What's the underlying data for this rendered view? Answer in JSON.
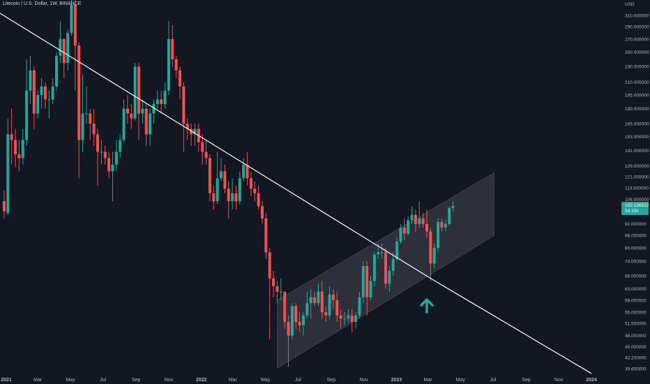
{
  "window": {
    "title": "Litecoin / U.S. Dollar, 1W, BINANCE"
  },
  "axis": {
    "unit": "USD"
  },
  "price_box": {
    "price": "102.136522",
    "countdown": "5d 15h"
  },
  "colors": {
    "background": "#131722",
    "up": "#26a69a",
    "down": "#ef5350",
    "channel_fill": "#434651",
    "trend_line": "#ffffff",
    "arrow": "#26a69a",
    "axis_text": "#b2b5be"
  },
  "icons": [
    "up-arrow-icon"
  ],
  "chart_data": {
    "type": "candlestick",
    "title": "Litecoin / U.S. Dollar, 1W, BINANCE",
    "y_scale": "log",
    "ylabel": "USD",
    "ylim": [
      38.5,
      340
    ],
    "y_ticks": [
      {
        "v": 310,
        "label": "310.000000"
      },
      {
        "v": 290,
        "label": "290.000000"
      },
      {
        "v": 270,
        "label": "270.000000"
      },
      {
        "v": 250,
        "label": "250.000000"
      },
      {
        "v": 230,
        "label": "230.000000"
      },
      {
        "v": 210,
        "label": "210.000000"
      },
      {
        "v": 195,
        "label": "195.000000"
      },
      {
        "v": 180,
        "label": "180.000000"
      },
      {
        "v": 165,
        "label": "165.000000"
      },
      {
        "v": 153,
        "label": "153.000000"
      },
      {
        "v": 141,
        "label": "141.000000"
      },
      {
        "v": 129,
        "label": "129.000000"
      },
      {
        "v": 121,
        "label": "121.000000"
      },
      {
        "v": 113.5,
        "label": "113.500000"
      },
      {
        "v": 106,
        "label": "106.000000"
      },
      {
        "v": 92,
        "label": "92.000000"
      },
      {
        "v": 86,
        "label": "86.000000"
      },
      {
        "v": 80,
        "label": "80.000000"
      },
      {
        "v": 74,
        "label": "74.000000"
      },
      {
        "v": 68,
        "label": "68.000000"
      },
      {
        "v": 63,
        "label": "63.000000"
      },
      {
        "v": 59,
        "label": "59.000000"
      },
      {
        "v": 55,
        "label": "55.000000"
      },
      {
        "v": 51.5,
        "label": "51.500000"
      },
      {
        "v": 48,
        "label": "48.000000"
      },
      {
        "v": 45,
        "label": "45.000000"
      },
      {
        "v": 42.2,
        "label": "42.200000"
      },
      {
        "v": 39.6,
        "label": "39.600000"
      }
    ],
    "x_ticks": [
      {
        "label": "2021",
        "bold": true,
        "date": "2021-01-01"
      },
      {
        "label": "Mar",
        "date": "2021-03-01"
      },
      {
        "label": "May",
        "date": "2021-05-01"
      },
      {
        "label": "Jul",
        "date": "2021-07-01"
      },
      {
        "label": "Sep",
        "date": "2021-09-01"
      },
      {
        "label": "Nov",
        "date": "2021-11-01"
      },
      {
        "label": "2022",
        "bold": true,
        "date": "2022-01-01"
      },
      {
        "label": "Mar",
        "date": "2022-03-01"
      },
      {
        "label": "May",
        "date": "2022-05-01"
      },
      {
        "label": "Jul",
        "date": "2022-07-01"
      },
      {
        "label": "Sep",
        "date": "2022-09-01"
      },
      {
        "label": "Nov",
        "date": "2022-11-01"
      },
      {
        "label": "2023",
        "bold": true,
        "date": "2023-01-01"
      },
      {
        "label": "Mar",
        "date": "2023-03-01"
      },
      {
        "label": "May",
        "date": "2023-05-01"
      },
      {
        "label": "Jul",
        "date": "2023-07-01"
      },
      {
        "label": "Sep",
        "date": "2023-09-01"
      },
      {
        "label": "Nov",
        "date": "2023-11-01"
      },
      {
        "label": "2024",
        "bold": true,
        "date": "2024-01-01"
      }
    ],
    "candles": [
      {
        "date": "2020-12-28",
        "o": 105,
        "h": 112,
        "l": 95,
        "c": 99
      },
      {
        "date": "2021-01-04",
        "o": 98,
        "h": 170,
        "l": 97,
        "c": 155
      },
      {
        "date": "2021-01-11",
        "o": 155,
        "h": 180,
        "l": 130,
        "c": 150
      },
      {
        "date": "2021-01-18",
        "o": 150,
        "h": 160,
        "l": 128,
        "c": 138
      },
      {
        "date": "2021-01-25",
        "o": 138,
        "h": 150,
        "l": 125,
        "c": 135
      },
      {
        "date": "2021-02-01",
        "o": 135,
        "h": 160,
        "l": 130,
        "c": 150
      },
      {
        "date": "2021-02-08",
        "o": 150,
        "h": 240,
        "l": 145,
        "c": 200
      },
      {
        "date": "2021-02-15",
        "o": 200,
        "h": 245,
        "l": 185,
        "c": 225
      },
      {
        "date": "2021-02-22",
        "o": 225,
        "h": 230,
        "l": 160,
        "c": 175
      },
      {
        "date": "2021-03-01",
        "o": 175,
        "h": 200,
        "l": 170,
        "c": 195
      },
      {
        "date": "2021-03-08",
        "o": 195,
        "h": 215,
        "l": 180,
        "c": 205
      },
      {
        "date": "2021-03-15",
        "o": 205,
        "h": 210,
        "l": 180,
        "c": 190
      },
      {
        "date": "2021-03-22",
        "o": 190,
        "h": 200,
        "l": 170,
        "c": 190
      },
      {
        "date": "2021-03-29",
        "o": 190,
        "h": 215,
        "l": 185,
        "c": 205
      },
      {
        "date": "2021-04-05",
        "o": 205,
        "h": 250,
        "l": 200,
        "c": 245
      },
      {
        "date": "2021-04-12",
        "o": 245,
        "h": 300,
        "l": 235,
        "c": 270
      },
      {
        "date": "2021-04-19",
        "o": 270,
        "h": 272,
        "l": 215,
        "c": 235
      },
      {
        "date": "2021-04-26",
        "o": 235,
        "h": 285,
        "l": 225,
        "c": 280
      },
      {
        "date": "2021-05-03",
        "o": 280,
        "h": 412,
        "l": 275,
        "c": 330
      },
      {
        "date": "2021-05-10",
        "o": 330,
        "h": 340,
        "l": 200,
        "c": 260
      },
      {
        "date": "2021-05-17",
        "o": 260,
        "h": 265,
        "l": 120,
        "c": 150
      },
      {
        "date": "2021-05-24",
        "o": 150,
        "h": 220,
        "l": 140,
        "c": 175
      },
      {
        "date": "2021-05-31",
        "o": 175,
        "h": 205,
        "l": 165,
        "c": 175
      },
      {
        "date": "2021-06-07",
        "o": 175,
        "h": 180,
        "l": 150,
        "c": 165
      },
      {
        "date": "2021-06-14",
        "o": 165,
        "h": 180,
        "l": 145,
        "c": 155
      },
      {
        "date": "2021-06-21",
        "o": 155,
        "h": 160,
        "l": 115,
        "c": 140
      },
      {
        "date": "2021-06-28",
        "o": 140,
        "h": 150,
        "l": 130,
        "c": 140
      },
      {
        "date": "2021-07-05",
        "o": 140,
        "h": 145,
        "l": 130,
        "c": 135
      },
      {
        "date": "2021-07-12",
        "o": 135,
        "h": 140,
        "l": 120,
        "c": 125
      },
      {
        "date": "2021-07-19",
        "o": 125,
        "h": 140,
        "l": 105,
        "c": 130
      },
      {
        "date": "2021-07-26",
        "o": 130,
        "h": 150,
        "l": 125,
        "c": 140
      },
      {
        "date": "2021-08-02",
        "o": 140,
        "h": 155,
        "l": 135,
        "c": 150
      },
      {
        "date": "2021-08-09",
        "o": 150,
        "h": 190,
        "l": 148,
        "c": 180
      },
      {
        "date": "2021-08-16",
        "o": 180,
        "h": 195,
        "l": 165,
        "c": 175
      },
      {
        "date": "2021-08-23",
        "o": 175,
        "h": 185,
        "l": 160,
        "c": 170
      },
      {
        "date": "2021-08-30",
        "o": 170,
        "h": 235,
        "l": 168,
        "c": 230
      },
      {
        "date": "2021-09-06",
        "o": 230,
        "h": 235,
        "l": 150,
        "c": 175
      },
      {
        "date": "2021-09-13",
        "o": 175,
        "h": 190,
        "l": 165,
        "c": 180
      },
      {
        "date": "2021-09-20",
        "o": 180,
        "h": 185,
        "l": 145,
        "c": 155
      },
      {
        "date": "2021-09-27",
        "o": 155,
        "h": 180,
        "l": 145,
        "c": 175
      },
      {
        "date": "2021-10-04",
        "o": 175,
        "h": 190,
        "l": 165,
        "c": 185
      },
      {
        "date": "2021-10-11",
        "o": 185,
        "h": 200,
        "l": 180,
        "c": 190
      },
      {
        "date": "2021-10-18",
        "o": 190,
        "h": 200,
        "l": 175,
        "c": 185
      },
      {
        "date": "2021-10-25",
        "o": 185,
        "h": 210,
        "l": 180,
        "c": 200
      },
      {
        "date": "2021-11-01",
        "o": 200,
        "h": 300,
        "l": 195,
        "c": 270
      },
      {
        "date": "2021-11-08",
        "o": 270,
        "h": 293,
        "l": 230,
        "c": 240
      },
      {
        "date": "2021-11-15",
        "o": 240,
        "h": 245,
        "l": 215,
        "c": 225
      },
      {
        "date": "2021-11-22",
        "o": 225,
        "h": 230,
        "l": 190,
        "c": 205
      },
      {
        "date": "2021-11-29",
        "o": 205,
        "h": 210,
        "l": 140,
        "c": 165
      },
      {
        "date": "2021-12-06",
        "o": 165,
        "h": 170,
        "l": 150,
        "c": 160
      },
      {
        "date": "2021-12-13",
        "o": 160,
        "h": 165,
        "l": 145,
        "c": 155
      },
      {
        "date": "2021-12-20",
        "o": 155,
        "h": 165,
        "l": 145,
        "c": 160
      },
      {
        "date": "2021-12-27",
        "o": 160,
        "h": 165,
        "l": 140,
        "c": 148
      },
      {
        "date": "2022-01-03",
        "o": 148,
        "h": 155,
        "l": 130,
        "c": 140
      },
      {
        "date": "2022-01-10",
        "o": 140,
        "h": 150,
        "l": 130,
        "c": 135
      },
      {
        "date": "2022-01-17",
        "o": 135,
        "h": 138,
        "l": 105,
        "c": 110
      },
      {
        "date": "2022-01-24",
        "o": 110,
        "h": 115,
        "l": 100,
        "c": 105
      },
      {
        "date": "2022-01-31",
        "o": 105,
        "h": 140,
        "l": 103,
        "c": 120
      },
      {
        "date": "2022-02-07",
        "o": 120,
        "h": 135,
        "l": 118,
        "c": 125
      },
      {
        "date": "2022-02-14",
        "o": 125,
        "h": 130,
        "l": 110,
        "c": 113
      },
      {
        "date": "2022-02-21",
        "o": 113,
        "h": 118,
        "l": 95,
        "c": 105
      },
      {
        "date": "2022-02-28",
        "o": 105,
        "h": 120,
        "l": 100,
        "c": 110
      },
      {
        "date": "2022-03-07",
        "o": 110,
        "h": 115,
        "l": 100,
        "c": 105
      },
      {
        "date": "2022-03-14",
        "o": 105,
        "h": 125,
        "l": 103,
        "c": 120
      },
      {
        "date": "2022-03-21",
        "o": 120,
        "h": 135,
        "l": 118,
        "c": 130
      },
      {
        "date": "2022-03-28",
        "o": 130,
        "h": 140,
        "l": 115,
        "c": 120
      },
      {
        "date": "2022-04-04",
        "o": 120,
        "h": 125,
        "l": 108,
        "c": 113
      },
      {
        "date": "2022-04-11",
        "o": 113,
        "h": 118,
        "l": 105,
        "c": 110
      },
      {
        "date": "2022-04-18",
        "o": 110,
        "h": 115,
        "l": 100,
        "c": 102
      },
      {
        "date": "2022-04-25",
        "o": 102,
        "h": 105,
        "l": 92,
        "c": 95
      },
      {
        "date": "2022-05-02",
        "o": 95,
        "h": 98,
        "l": 75,
        "c": 78
      },
      {
        "date": "2022-05-09",
        "o": 78,
        "h": 80,
        "l": 47,
        "c": 67
      },
      {
        "date": "2022-05-16",
        "o": 67,
        "h": 70,
        "l": 60,
        "c": 64
      },
      {
        "date": "2022-05-23",
        "o": 64,
        "h": 66,
        "l": 58,
        "c": 62
      },
      {
        "date": "2022-05-30",
        "o": 62,
        "h": 67,
        "l": 59,
        "c": 62
      },
      {
        "date": "2022-06-06",
        "o": 62,
        "h": 62,
        "l": 50,
        "c": 52
      },
      {
        "date": "2022-06-13",
        "o": 52,
        "h": 54,
        "l": 40,
        "c": 48
      },
      {
        "date": "2022-06-20",
        "o": 48,
        "h": 58,
        "l": 47,
        "c": 57
      },
      {
        "date": "2022-06-27",
        "o": 57,
        "h": 58,
        "l": 50,
        "c": 52
      },
      {
        "date": "2022-07-04",
        "o": 52,
        "h": 55,
        "l": 49,
        "c": 51
      },
      {
        "date": "2022-07-11",
        "o": 51,
        "h": 55,
        "l": 48,
        "c": 54
      },
      {
        "date": "2022-07-18",
        "o": 54,
        "h": 62,
        "l": 53,
        "c": 58
      },
      {
        "date": "2022-07-25",
        "o": 58,
        "h": 63,
        "l": 53,
        "c": 60
      },
      {
        "date": "2022-08-01",
        "o": 60,
        "h": 62,
        "l": 57,
        "c": 58
      },
      {
        "date": "2022-08-08",
        "o": 58,
        "h": 65,
        "l": 57,
        "c": 62
      },
      {
        "date": "2022-08-15",
        "o": 62,
        "h": 66,
        "l": 53,
        "c": 55
      },
      {
        "date": "2022-08-22",
        "o": 55,
        "h": 57,
        "l": 52,
        "c": 54
      },
      {
        "date": "2022-08-29",
        "o": 54,
        "h": 64,
        "l": 53,
        "c": 61
      },
      {
        "date": "2022-09-05",
        "o": 61,
        "h": 63,
        "l": 56,
        "c": 59
      },
      {
        "date": "2022-09-12",
        "o": 59,
        "h": 62,
        "l": 52,
        "c": 54
      },
      {
        "date": "2022-09-19",
        "o": 54,
        "h": 56,
        "l": 50,
        "c": 53
      },
      {
        "date": "2022-09-26",
        "o": 53,
        "h": 55,
        "l": 51,
        "c": 53
      },
      {
        "date": "2022-10-03",
        "o": 53,
        "h": 56,
        "l": 52,
        "c": 54
      },
      {
        "date": "2022-10-10",
        "o": 54,
        "h": 56,
        "l": 49,
        "c": 52
      },
      {
        "date": "2022-10-17",
        "o": 52,
        "h": 55,
        "l": 50,
        "c": 54
      },
      {
        "date": "2022-10-24",
        "o": 54,
        "h": 62,
        "l": 53,
        "c": 60
      },
      {
        "date": "2022-10-31",
        "o": 60,
        "h": 74,
        "l": 58,
        "c": 72
      },
      {
        "date": "2022-11-07",
        "o": 72,
        "h": 74,
        "l": 54,
        "c": 60
      },
      {
        "date": "2022-11-14",
        "o": 60,
        "h": 68,
        "l": 59,
        "c": 66
      },
      {
        "date": "2022-11-21",
        "o": 66,
        "h": 78,
        "l": 64,
        "c": 77
      },
      {
        "date": "2022-11-28",
        "o": 77,
        "h": 82,
        "l": 75,
        "c": 78
      },
      {
        "date": "2022-12-05",
        "o": 78,
        "h": 82,
        "l": 75,
        "c": 78
      },
      {
        "date": "2022-12-12",
        "o": 78,
        "h": 80,
        "l": 63,
        "c": 65
      },
      {
        "date": "2022-12-19",
        "o": 65,
        "h": 72,
        "l": 62,
        "c": 70
      },
      {
        "date": "2022-12-26",
        "o": 70,
        "h": 78,
        "l": 68,
        "c": 75
      },
      {
        "date": "2023-01-02",
        "o": 75,
        "h": 85,
        "l": 74,
        "c": 83
      },
      {
        "date": "2023-01-09",
        "o": 83,
        "h": 92,
        "l": 82,
        "c": 90
      },
      {
        "date": "2023-01-16",
        "o": 90,
        "h": 95,
        "l": 84,
        "c": 87
      },
      {
        "date": "2023-01-23",
        "o": 87,
        "h": 96,
        "l": 86,
        "c": 94
      },
      {
        "date": "2023-01-30",
        "o": 94,
        "h": 102,
        "l": 92,
        "c": 97
      },
      {
        "date": "2023-02-06",
        "o": 97,
        "h": 100,
        "l": 88,
        "c": 92
      },
      {
        "date": "2023-02-13",
        "o": 92,
        "h": 105,
        "l": 90,
        "c": 95
      },
      {
        "date": "2023-02-20",
        "o": 95,
        "h": 98,
        "l": 90,
        "c": 92
      },
      {
        "date": "2023-02-27",
        "o": 92,
        "h": 100,
        "l": 85,
        "c": 88
      },
      {
        "date": "2023-03-06",
        "o": 88,
        "h": 90,
        "l": 66,
        "c": 73
      },
      {
        "date": "2023-03-13",
        "o": 73,
        "h": 82,
        "l": 71,
        "c": 80
      },
      {
        "date": "2023-03-20",
        "o": 80,
        "h": 95,
        "l": 78,
        "c": 93
      },
      {
        "date": "2023-03-27",
        "o": 93,
        "h": 95,
        "l": 88,
        "c": 90
      },
      {
        "date": "2023-04-03",
        "o": 90,
        "h": 94,
        "l": 88,
        "c": 92
      },
      {
        "date": "2023-04-10",
        "o": 92,
        "h": 102,
        "l": 91,
        "c": 101
      },
      {
        "date": "2023-04-17",
        "o": 101,
        "h": 105,
        "l": 99,
        "c": 102.14
      }
    ],
    "overlays": [
      {
        "type": "trend_line",
        "color": "#ffffff",
        "points": [
          {
            "date": "2020-12-10",
            "price": 320
          },
          {
            "date": "2023-03-10",
            "price": 66.5
          },
          {
            "date": "2024-01-01",
            "price": 38.5
          }
        ]
      },
      {
        "type": "parallel_channel",
        "color": "#434651",
        "lower": [
          {
            "date": "2022-05-23",
            "price": 39.7
          },
          {
            "date": "2023-07-03",
            "price": 86
          }
        ],
        "upper": [
          {
            "date": "2022-05-23",
            "price": 59
          },
          {
            "date": "2023-07-03",
            "price": 124
          }
        ]
      },
      {
        "type": "arrow",
        "direction": "up",
        "color": "#26a69a",
        "at": {
          "date": "2023-02-27",
          "price": 58
        }
      }
    ],
    "last_price": 102.136522
  }
}
